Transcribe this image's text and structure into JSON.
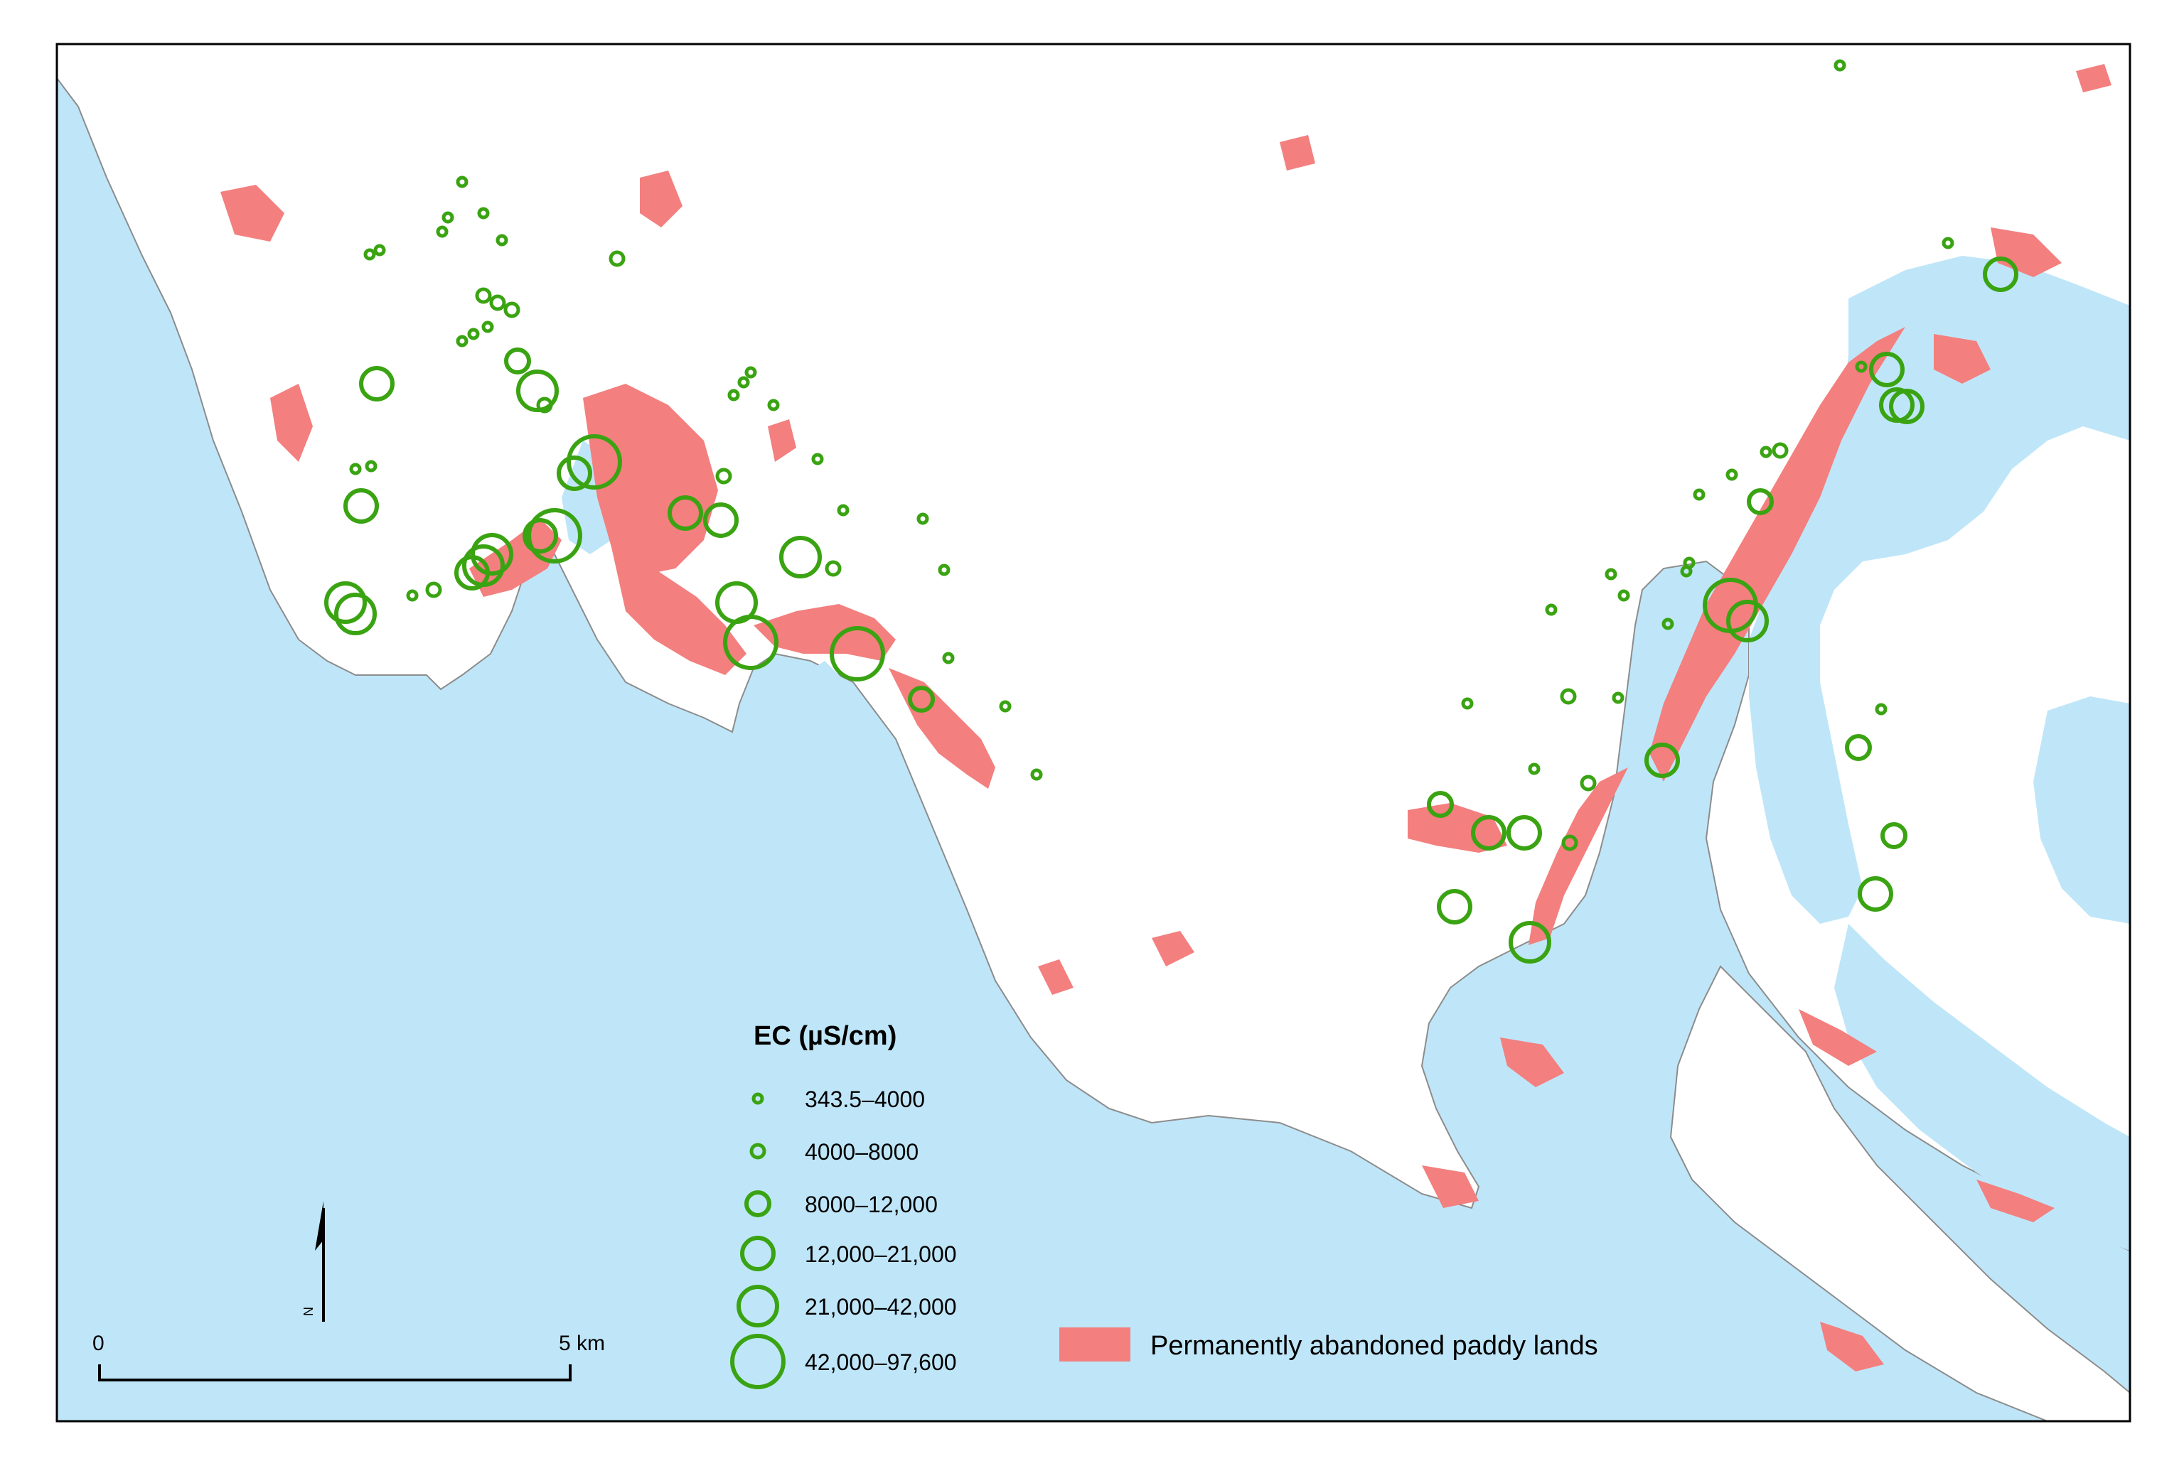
{
  "colors": {
    "water": "#bfe6f8",
    "land": "#ffffff",
    "paddy": "#f37f7f",
    "sample_stroke": "#3aa312",
    "frame": "#000000",
    "coast": "#8c8c8c"
  },
  "legend": {
    "title": "EC (µS/cm)",
    "classes": [
      {
        "label": "343.5–4000",
        "icon": "circle-xs"
      },
      {
        "label": "4000–8000",
        "icon": "circle-s"
      },
      {
        "label": "8000–12,000",
        "icon": "circle-m"
      },
      {
        "label": "12,000–21,000",
        "icon": "circle-l"
      },
      {
        "label": "21,000–42,000",
        "icon": "circle-xl"
      },
      {
        "label": "42,000–97,600",
        "icon": "circle-xxl"
      }
    ],
    "paddy_label": "Permanently abandoned paddy lands"
  },
  "scale_bar": {
    "start_label": "0",
    "end_label": "5 km"
  },
  "north_arrow": {
    "label": "N"
  }
}
